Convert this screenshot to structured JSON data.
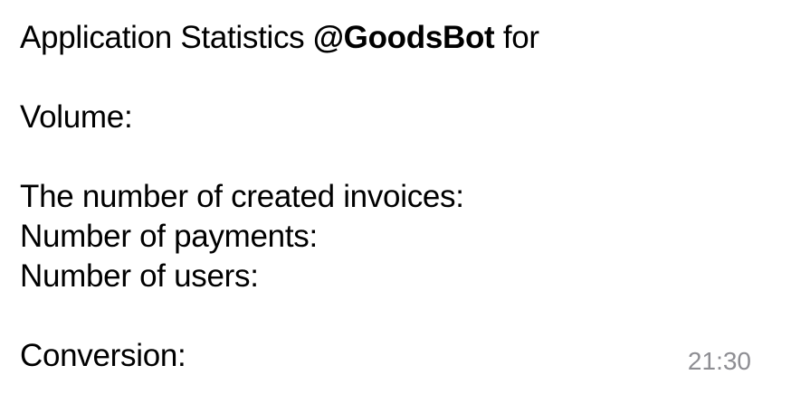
{
  "message": {
    "title_prefix": "Application Statistics",
    "bot_handle": "@GoodsBot",
    "title_suffix": "for",
    "volume_label": "Volume:",
    "invoices_label": "The number of created invoices:",
    "payments_label": "Number of payments:",
    "users_label": "Number of users:",
    "conversion_label": "Conversion:",
    "time": "21:30"
  }
}
